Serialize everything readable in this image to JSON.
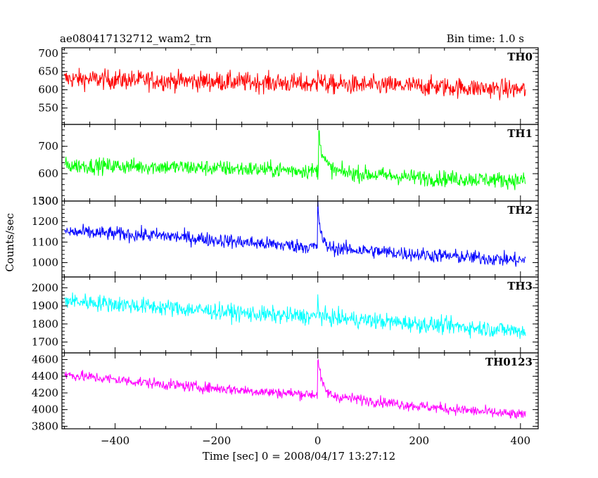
{
  "chart_data": {
    "type": "line",
    "title": "ae080417132712_wam2_trn",
    "subtitle": "Bin time: 1.0 s",
    "xlabel": "Time [sec] 0 = 2008/04/17 13:27:12",
    "ylabel": "Counts/sec",
    "xlim": [
      -505,
      435
    ],
    "xticks": [
      -400,
      -200,
      0,
      200,
      400
    ],
    "grid": false,
    "bin_time_s": 1.0,
    "series": [
      {
        "name": "TH0",
        "color": "#ff0000",
        "ylim": [
          505,
          715
        ],
        "yticks": [
          550,
          600,
          650,
          700
        ],
        "trend": [
          [
            -500,
            630
          ],
          [
            -300,
            625
          ],
          [
            -100,
            620
          ],
          [
            0,
            615
          ],
          [
            200,
            610
          ],
          [
            410,
            600
          ]
        ],
        "noise": 35,
        "burst": {
          "t": 0,
          "peak": 60,
          "decay": 3
        }
      },
      {
        "name": "TH1",
        "color": "#00ff00",
        "ylim": [
          500,
          780
        ],
        "yticks": [
          500,
          600,
          700
        ],
        "trend": [
          [
            -500,
            630
          ],
          [
            -300,
            625
          ],
          [
            -100,
            615
          ],
          [
            0,
            610
          ],
          [
            200,
            585
          ],
          [
            410,
            575
          ]
        ],
        "noise": 38,
        "burst": {
          "t": 2,
          "peak": 140,
          "decay": 10
        }
      },
      {
        "name": "TH2",
        "color": "#0000ff",
        "ylim": [
          930,
          1300
        ],
        "yticks": [
          1000,
          1100,
          1200,
          1300
        ],
        "trend": [
          [
            -500,
            1150
          ],
          [
            -300,
            1130
          ],
          [
            -100,
            1090
          ],
          [
            0,
            1075
          ],
          [
            200,
            1040
          ],
          [
            410,
            1010
          ]
        ],
        "noise": 45,
        "burst": {
          "t": 0,
          "peak": 210,
          "decay": 6
        }
      },
      {
        "name": "TH3",
        "color": "#00ffff",
        "ylim": [
          1640,
          2060
        ],
        "yticks": [
          1700,
          1800,
          1900,
          2000
        ],
        "trend": [
          [
            -500,
            1930
          ],
          [
            -300,
            1890
          ],
          [
            -100,
            1850
          ],
          [
            0,
            1840
          ],
          [
            200,
            1800
          ],
          [
            410,
            1760
          ]
        ],
        "noise": 60,
        "burst": {
          "t": 0,
          "peak": 120,
          "decay": 2
        }
      },
      {
        "name": "TH0123",
        "color": "#ff00ff",
        "ylim": [
          3770,
          4680
        ],
        "yticks": [
          3800,
          4000,
          4200,
          4400,
          4600
        ],
        "trend": [
          [
            -500,
            4420
          ],
          [
            -300,
            4300
          ],
          [
            -100,
            4210
          ],
          [
            0,
            4180
          ],
          [
            200,
            4040
          ],
          [
            410,
            3930
          ]
        ],
        "noise": 85,
        "burst": {
          "t": 0,
          "peak": 450,
          "decay": 8
        }
      }
    ]
  }
}
